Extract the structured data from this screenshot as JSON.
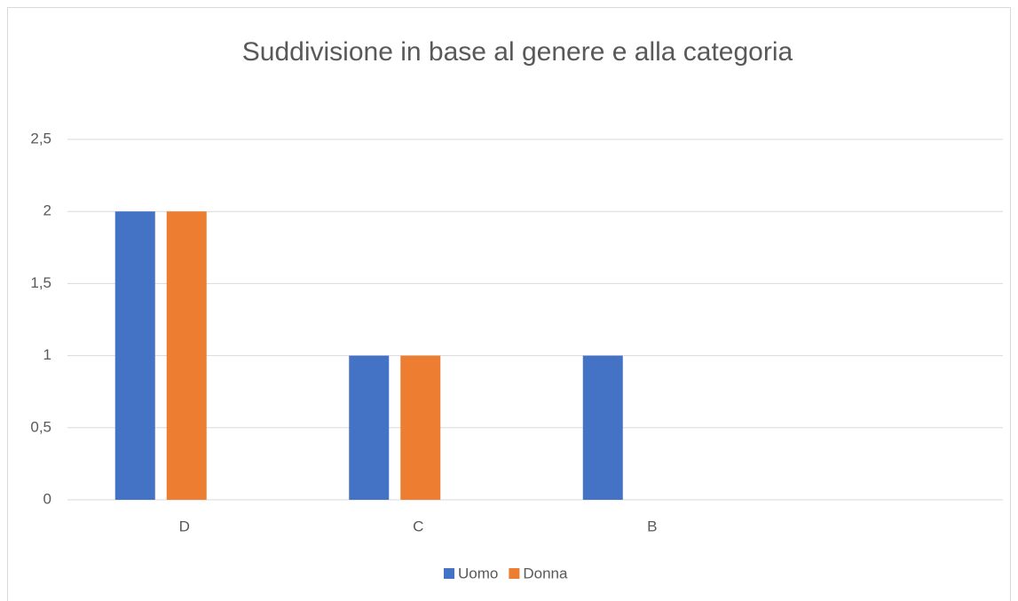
{
  "chart_data": {
    "type": "bar",
    "title": "Suddivisione in base al genere e alla categoria",
    "categories": [
      "D",
      "C",
      "B",
      null
    ],
    "series": [
      {
        "name": "Uomo",
        "color": "#4472c4",
        "values": [
          2,
          1,
          1,
          null
        ]
      },
      {
        "name": "Donna",
        "color": "#ed7d31",
        "values": [
          2,
          1,
          null,
          null
        ]
      }
    ],
    "ylim": [
      0,
      2.5
    ],
    "yticks": [
      0,
      {
        "value": 0.5,
        "label": "0,5"
      },
      1,
      {
        "value": 1.5,
        "label": "1,5"
      },
      2,
      {
        "value": 2.5,
        "label": "2,5"
      }
    ],
    "grid": true,
    "legend": "bottom"
  }
}
